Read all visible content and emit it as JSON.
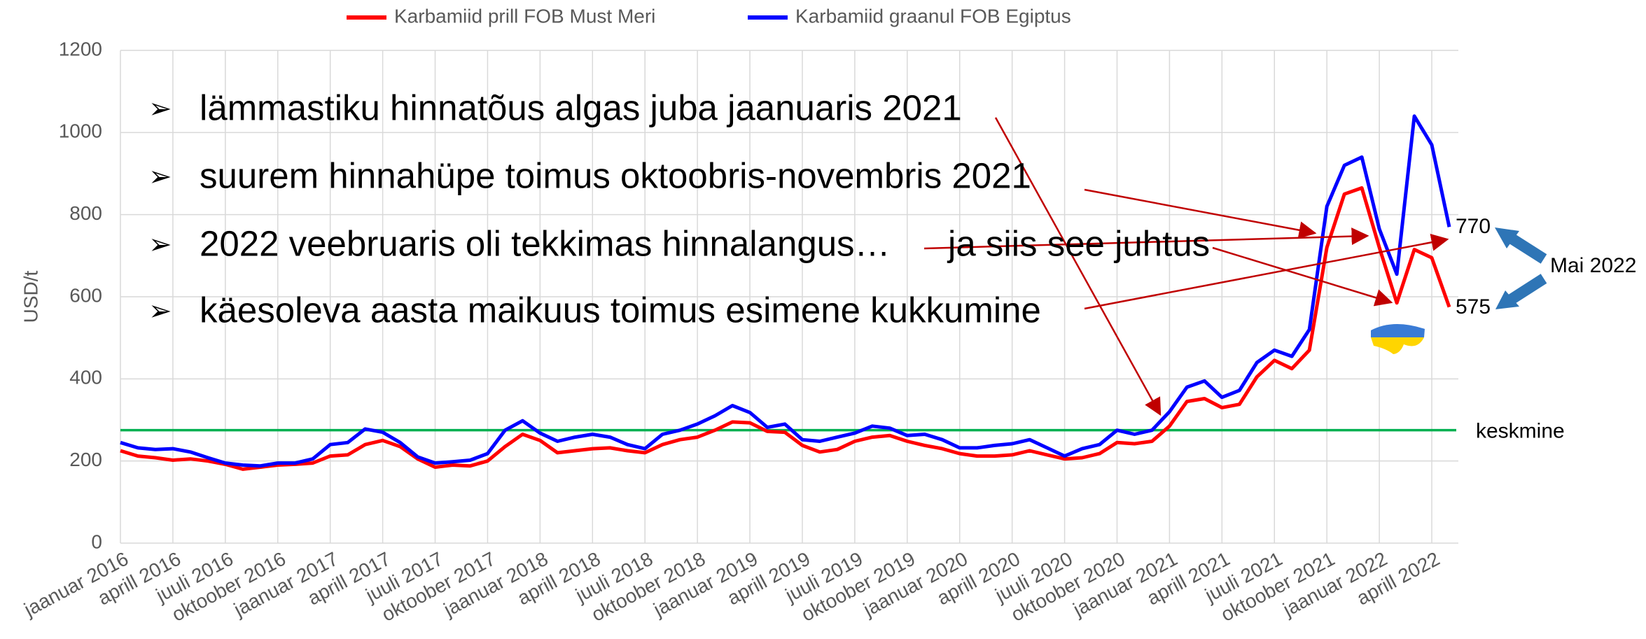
{
  "chart_data": {
    "type": "line",
    "categories": [
      "jaanuar 2016",
      null,
      null,
      "aprill 2016",
      null,
      null,
      "juuli 2016",
      null,
      null,
      "oktoober 2016",
      null,
      null,
      "jaanuar 2017",
      null,
      null,
      "aprill 2017",
      null,
      null,
      "juuli 2017",
      null,
      null,
      "oktoober 2017",
      null,
      null,
      "jaanuar 2018",
      null,
      null,
      "aprill 2018",
      null,
      null,
      "juuli 2018",
      null,
      null,
      "oktoober 2018",
      null,
      null,
      "jaanuar 2019",
      null,
      null,
      "aprill 2019",
      null,
      null,
      "juuli 2019",
      null,
      null,
      "oktoober 2019",
      null,
      null,
      "jaanuar 2020",
      null,
      null,
      "aprill 2020",
      null,
      null,
      "juuli 2020",
      null,
      null,
      "oktoober 2020",
      null,
      null,
      "jaanuar 2021",
      null,
      null,
      "aprill 2021",
      null,
      null,
      "juuli 2021",
      null,
      null,
      "oktoober 2021",
      null,
      null,
      "jaanuar 2022",
      null,
      null,
      "aprill 2022",
      null
    ],
    "series": [
      {
        "name": "Karbamiid prill FOB Must Meri",
        "color": "#ff0000",
        "values": [
          225,
          212,
          208,
          202,
          205,
          200,
          192,
          180,
          185,
          190,
          192,
          195,
          212,
          215,
          240,
          250,
          235,
          205,
          185,
          190,
          188,
          200,
          235,
          265,
          250,
          220,
          225,
          230,
          232,
          225,
          220,
          240,
          252,
          258,
          275,
          295,
          293,
          272,
          270,
          238,
          222,
          228,
          248,
          258,
          262,
          248,
          238,
          230,
          218,
          212,
          212,
          215,
          225,
          215,
          205,
          208,
          218,
          245,
          242,
          248,
          285,
          345,
          352,
          330,
          338,
          405,
          445,
          425,
          470,
          720,
          850,
          865,
          720,
          585,
          715,
          695,
          575
        ]
      },
      {
        "name": "Karbamiid graanul FOB Egiptus",
        "color": "#0000ff",
        "values": [
          245,
          232,
          228,
          230,
          222,
          208,
          195,
          190,
          188,
          195,
          195,
          205,
          240,
          245,
          278,
          270,
          245,
          210,
          195,
          198,
          202,
          218,
          275,
          298,
          268,
          248,
          258,
          265,
          258,
          240,
          230,
          265,
          275,
          290,
          310,
          335,
          318,
          282,
          290,
          252,
          248,
          258,
          268,
          285,
          280,
          262,
          265,
          252,
          232,
          232,
          238,
          242,
          252,
          232,
          212,
          230,
          240,
          275,
          265,
          275,
          320,
          380,
          395,
          355,
          372,
          440,
          470,
          455,
          520,
          820,
          920,
          940,
          765,
          655,
          1040,
          970,
          770
        ]
      }
    ],
    "y_label": "USD/t",
    "ylim": [
      0,
      1200
    ],
    "yticks": [
      0,
      200,
      400,
      600,
      800,
      1000,
      1200
    ],
    "grid": true,
    "average": {
      "value": 275,
      "label": "keskmine",
      "color": "#00b050"
    },
    "bullets": [
      "lämmastiku hinnatõus algas juba jaanuaris 2021",
      "suurem hinnahüpe toimus oktoobris-novembris 2021",
      "2022 veebruaris oli tekkimas hinnalangus…",
      "käesoleva aasta maikuus toimus esimene kukkumine"
    ],
    "annotations": [
      "ja siis see juhtus",
      "770",
      "575",
      "Mai 2022"
    ]
  }
}
